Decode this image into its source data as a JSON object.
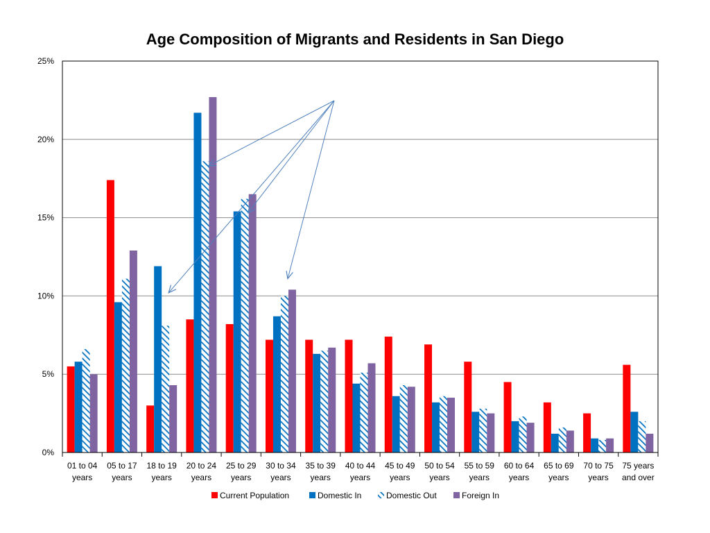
{
  "chart_data": {
    "type": "bar",
    "title": "Age Composition of Migrants and Residents in San Diego",
    "xlabel": "",
    "ylabel": "",
    "ylim": [
      0,
      25
    ],
    "yticks": [
      {
        "value": 0,
        "label": "0%"
      },
      {
        "value": 5,
        "label": "5%"
      },
      {
        "value": 10,
        "label": "10%"
      },
      {
        "value": 15,
        "label": "15%"
      },
      {
        "value": 20,
        "label": "20%"
      },
      {
        "value": 25,
        "label": "25%"
      }
    ],
    "grid": true,
    "legend_position": "bottom",
    "categories": [
      [
        "01 to 04",
        "years"
      ],
      [
        "05 to 17",
        "years"
      ],
      [
        "18 to 19",
        "years"
      ],
      [
        "20 to 24",
        "years"
      ],
      [
        "25 to 29",
        "years"
      ],
      [
        "30 to 34",
        "years"
      ],
      [
        "35 to 39",
        "years"
      ],
      [
        "40 to 44",
        "years"
      ],
      [
        "45 to 49",
        "years"
      ],
      [
        "50 to 54",
        "years"
      ],
      [
        "55 to 59",
        "years"
      ],
      [
        "60 to 64",
        "years"
      ],
      [
        "65 to 69",
        "years"
      ],
      [
        "70 to 75",
        "years"
      ],
      [
        "75 years",
        "and over"
      ]
    ],
    "series": [
      {
        "name": "Current Population",
        "color": "#ff0000",
        "pattern": "solid",
        "values": [
          5.5,
          17.4,
          3.0,
          8.5,
          8.2,
          7.2,
          7.2,
          7.2,
          7.4,
          6.9,
          5.8,
          4.5,
          3.2,
          2.5,
          5.6
        ]
      },
      {
        "name": "Domestic In",
        "color": "#0070c0",
        "pattern": "solid",
        "values": [
          5.8,
          9.6,
          11.9,
          21.7,
          15.4,
          8.7,
          6.3,
          4.4,
          3.6,
          3.2,
          2.6,
          2.0,
          1.2,
          0.9,
          2.6
        ]
      },
      {
        "name": "Domestic Out",
        "color": "#0070c0",
        "pattern": "hatched",
        "values": [
          6.6,
          11.1,
          8.1,
          18.6,
          16.2,
          10.0,
          6.5,
          5.1,
          4.3,
          3.6,
          2.8,
          2.3,
          1.6,
          0.8,
          2.0
        ]
      },
      {
        "name": "Foreign In",
        "color": "#8064a2",
        "pattern": "solid",
        "values": [
          5.0,
          12.9,
          4.3,
          22.7,
          16.5,
          10.4,
          6.7,
          5.7,
          4.2,
          3.5,
          2.5,
          1.9,
          1.4,
          0.9,
          1.2
        ]
      }
    ],
    "annotations": {
      "type": "arrows",
      "color": "#4f81bd",
      "targets": [
        {
          "category_index": 2,
          "value": 10.2
        },
        {
          "category_index": 3,
          "value": 18.3
        },
        {
          "category_index": 4,
          "value": 15.3
        },
        {
          "category_index": 5,
          "value": 11.1
        }
      ]
    }
  }
}
